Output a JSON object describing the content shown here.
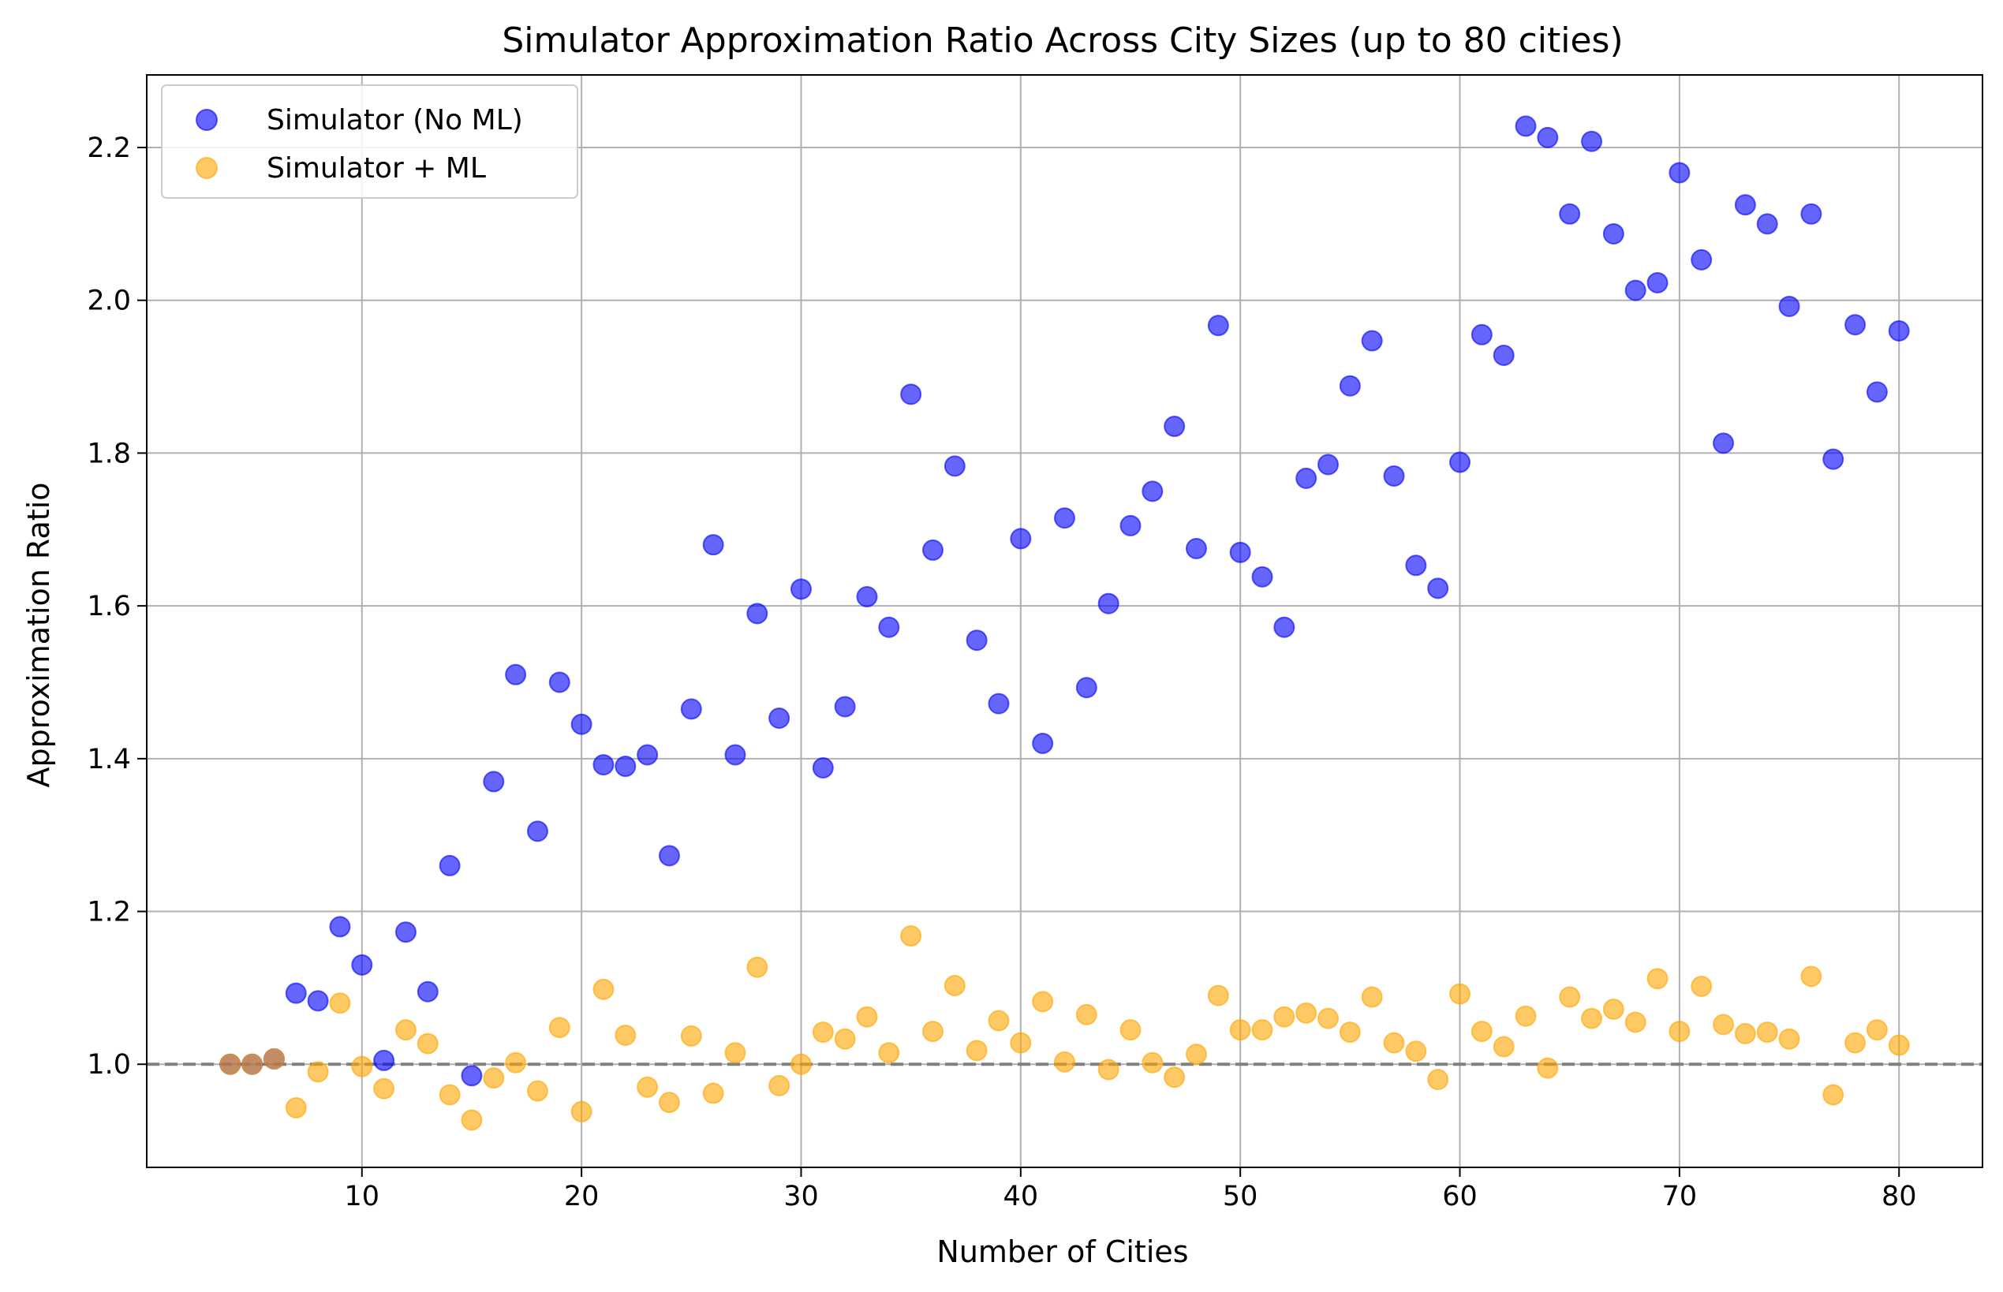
{
  "chart_data": {
    "type": "scatter",
    "title": "Simulator Approximation Ratio Across City Sizes (up to 80 cities)",
    "xlabel": "Number of Cities",
    "ylabel": "Approximation Ratio",
    "xlim": [
      0.2,
      83.8
    ],
    "ylim": [
      0.865,
      2.295
    ],
    "xticks": [
      10,
      20,
      30,
      40,
      50,
      60,
      70,
      80
    ],
    "yticks": [
      1.0,
      1.2,
      1.4,
      1.6,
      1.8,
      2.0,
      2.2
    ],
    "xtick_labels": [
      "10",
      "20",
      "30",
      "40",
      "50",
      "60",
      "70",
      "80"
    ],
    "ytick_labels": [
      "1.0",
      "1.2",
      "1.4",
      "1.6",
      "1.8",
      "2.0",
      "2.2"
    ],
    "grid": true,
    "legend_position": "top-left",
    "reference_line": {
      "y": 1.0,
      "style": "dashed",
      "color": "#808080"
    },
    "series": [
      {
        "name": "Simulator (No ML)",
        "color": "#0000ff",
        "alpha": 0.6,
        "x": [
          4,
          5,
          6,
          7,
          8,
          9,
          10,
          11,
          12,
          13,
          14,
          15,
          16,
          17,
          18,
          19,
          20,
          21,
          22,
          23,
          24,
          25,
          26,
          27,
          28,
          29,
          30,
          31,
          32,
          33,
          34,
          35,
          36,
          37,
          38,
          39,
          40,
          41,
          42,
          43,
          44,
          45,
          46,
          47,
          48,
          49,
          50,
          51,
          52,
          53,
          54,
          55,
          56,
          57,
          58,
          59,
          60,
          61,
          62,
          63,
          64,
          65,
          66,
          67,
          68,
          69,
          70,
          71,
          72,
          73,
          74,
          75,
          76,
          77,
          78,
          79,
          80
        ],
        "values": [
          1.0,
          1.0,
          1.007,
          1.093,
          1.083,
          1.18,
          1.13,
          1.005,
          1.173,
          1.095,
          1.26,
          0.985,
          1.37,
          1.51,
          1.305,
          1.5,
          1.445,
          1.392,
          1.39,
          1.405,
          1.273,
          1.465,
          1.68,
          1.405,
          1.59,
          1.453,
          1.622,
          1.388,
          1.468,
          1.612,
          1.572,
          1.877,
          1.673,
          1.783,
          1.555,
          1.472,
          1.688,
          1.42,
          1.715,
          1.493,
          1.603,
          1.705,
          1.75,
          1.835,
          1.675,
          1.967,
          1.67,
          1.638,
          1.572,
          1.767,
          1.785,
          1.888,
          1.947,
          1.77,
          1.653,
          1.623,
          1.788,
          1.955,
          1.928,
          2.228,
          2.213,
          2.113,
          2.208,
          2.087,
          2.013,
          2.023,
          2.167,
          2.053,
          1.813,
          2.125,
          2.1,
          1.992,
          2.113,
          1.792,
          1.968,
          1.88,
          1.96
        ]
      },
      {
        "name": "Simulator + ML",
        "color": "#ffa500",
        "alpha": 0.6,
        "x": [
          4,
          5,
          6,
          7,
          8,
          9,
          10,
          11,
          12,
          13,
          14,
          15,
          16,
          17,
          18,
          19,
          20,
          21,
          22,
          23,
          24,
          25,
          26,
          27,
          28,
          29,
          30,
          31,
          32,
          33,
          34,
          35,
          36,
          37,
          38,
          39,
          40,
          41,
          42,
          43,
          44,
          45,
          46,
          47,
          48,
          49,
          50,
          51,
          52,
          53,
          54,
          55,
          56,
          57,
          58,
          59,
          60,
          61,
          62,
          63,
          64,
          65,
          66,
          67,
          68,
          69,
          70,
          71,
          72,
          73,
          74,
          75,
          76,
          77,
          78,
          79,
          80
        ],
        "values": [
          1.0,
          1.0,
          1.007,
          0.943,
          0.99,
          1.08,
          0.997,
          0.968,
          1.045,
          1.027,
          0.96,
          0.927,
          0.982,
          1.002,
          0.965,
          1.048,
          0.938,
          1.098,
          1.038,
          0.97,
          0.95,
          1.037,
          0.962,
          1.015,
          1.127,
          0.972,
          1.0,
          1.042,
          1.033,
          1.062,
          1.015,
          1.168,
          1.043,
          1.103,
          1.018,
          1.057,
          1.028,
          1.082,
          1.003,
          1.065,
          0.993,
          1.045,
          1.002,
          0.983,
          1.013,
          1.09,
          1.045,
          1.045,
          1.062,
          1.067,
          1.06,
          1.042,
          1.088,
          1.028,
          1.017,
          0.98,
          1.092,
          1.043,
          1.023,
          1.063,
          0.995,
          1.088,
          1.06,
          1.072,
          1.055,
          1.112,
          1.043,
          1.102,
          1.052,
          1.04,
          1.042,
          1.033,
          1.115,
          0.96,
          1.028,
          1.045,
          1.025
        ]
      }
    ]
  }
}
